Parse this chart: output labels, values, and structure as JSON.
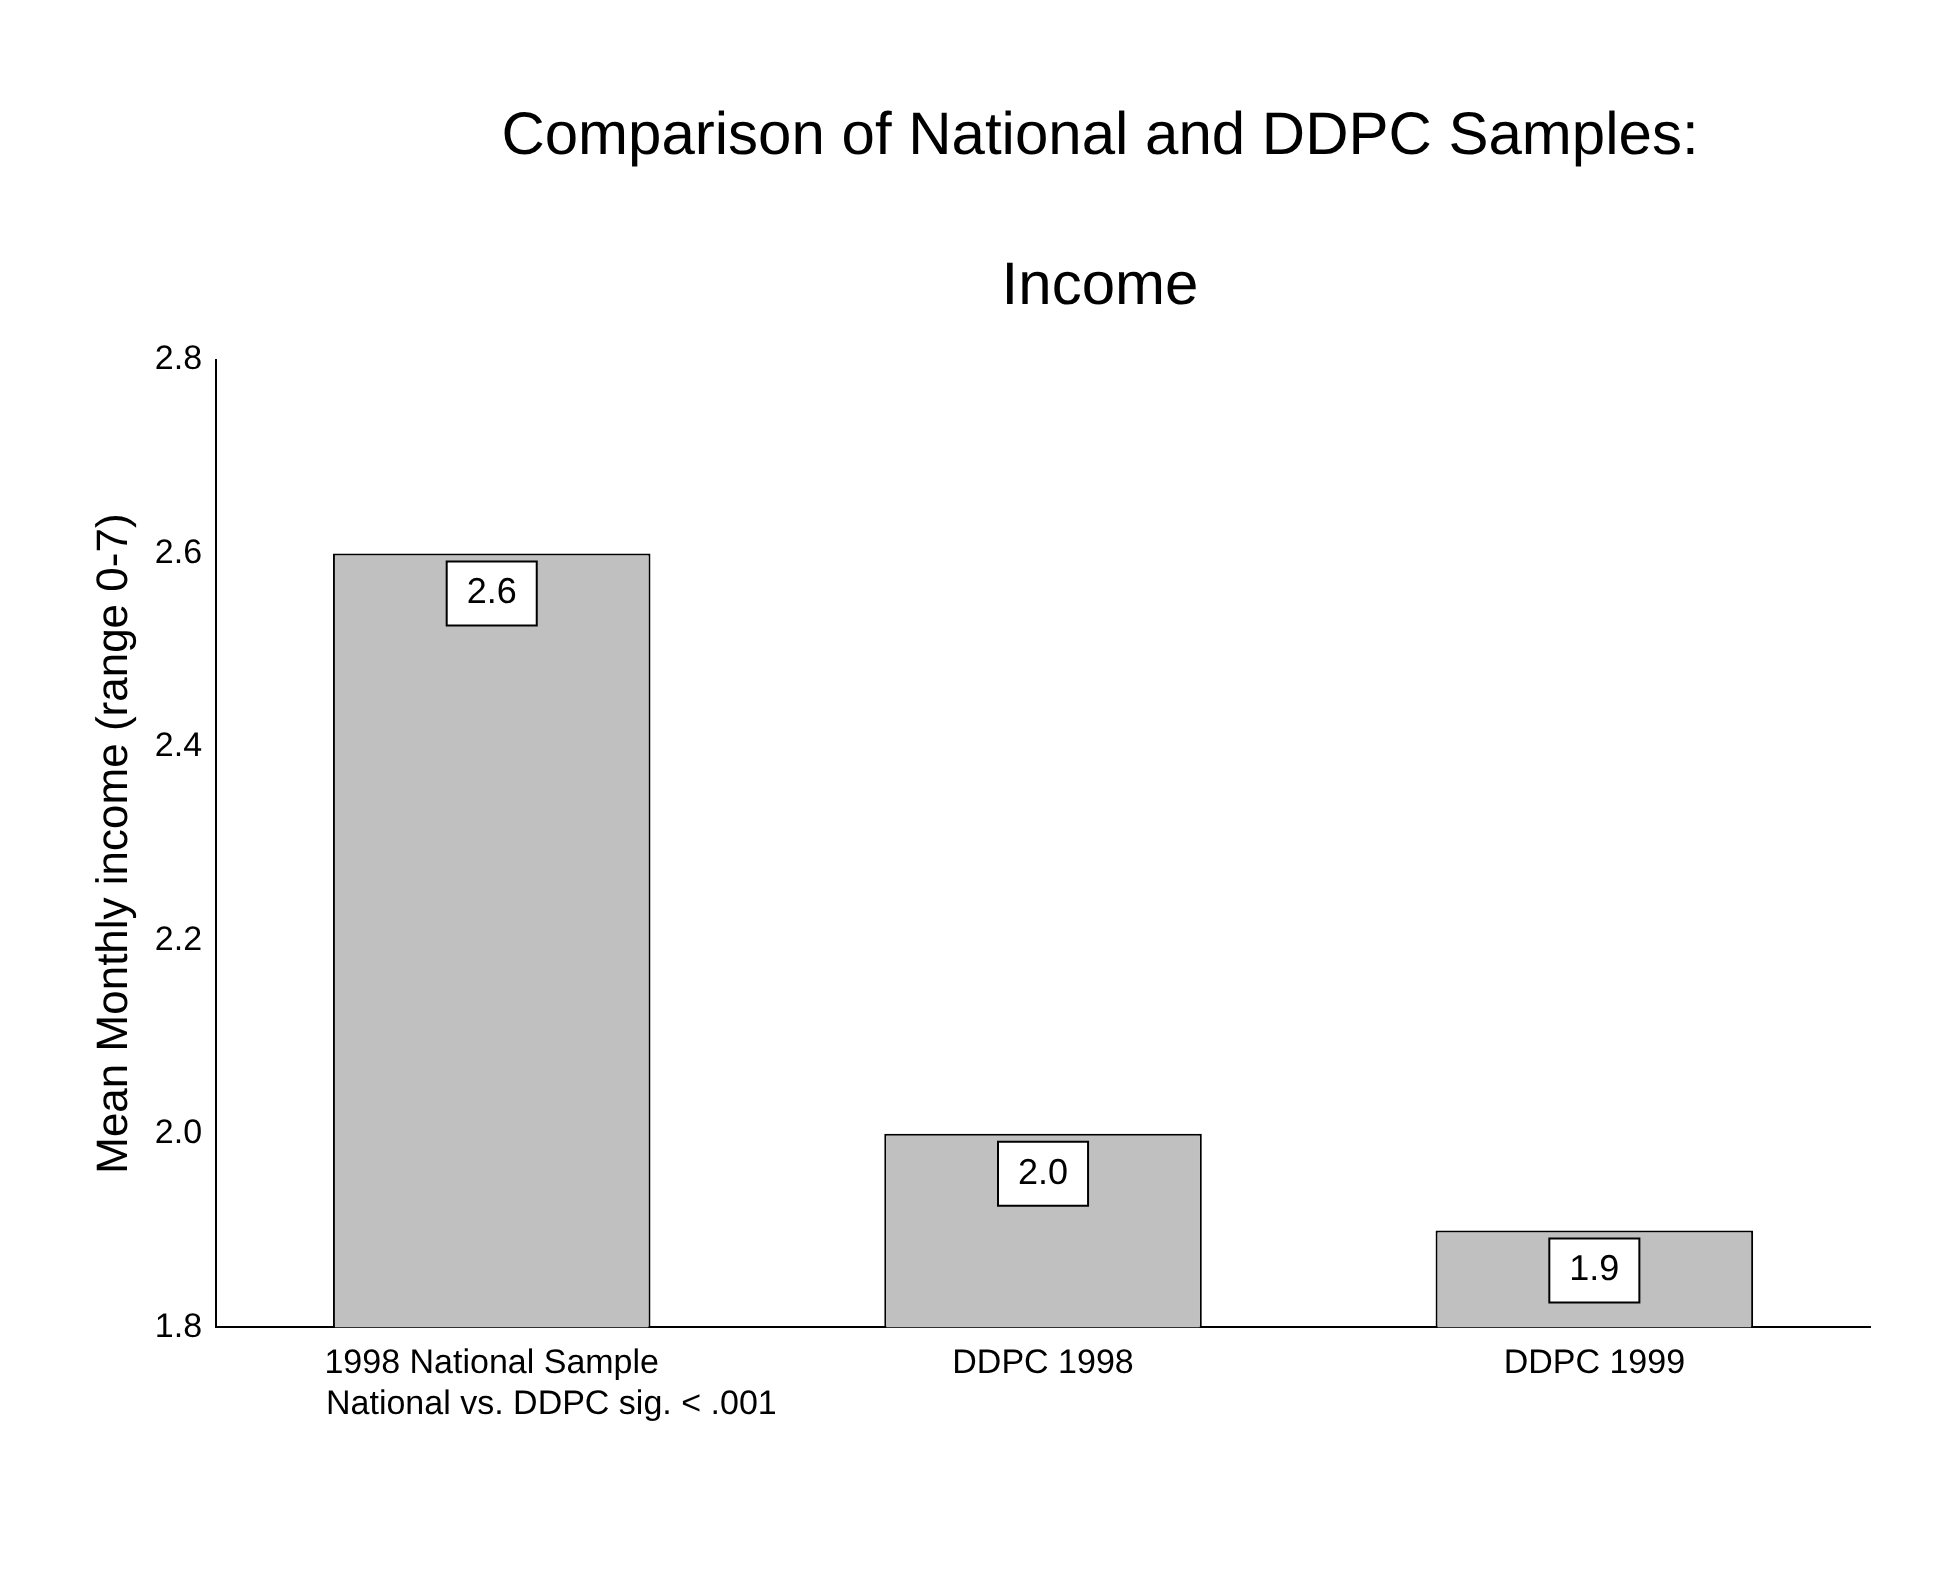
{
  "chart_data": {
    "type": "bar",
    "title": "Comparison of National and DDPC Samples: Income",
    "ylabel": "Mean Monthly income (range 0-7)",
    "categories": [
      "1998 National Sample",
      "DDPC 1998",
      "DDPC 1999"
    ],
    "values": [
      2.6,
      2.0,
      1.9
    ],
    "color": "#c0c0c0",
    "ylim": [
      1.8,
      2.8
    ],
    "yticks": [
      1.8,
      {
        "value": 2,
        "label": "2.0"
      },
      2.2,
      2.4,
      2.6,
      2.8
    ],
    "grid": false,
    "legend": false,
    "value_labels": [
      "2.6",
      "2.0",
      "1.9"
    ],
    "annotations": [
      "National vs. DDPC sig. < .001"
    ]
  }
}
